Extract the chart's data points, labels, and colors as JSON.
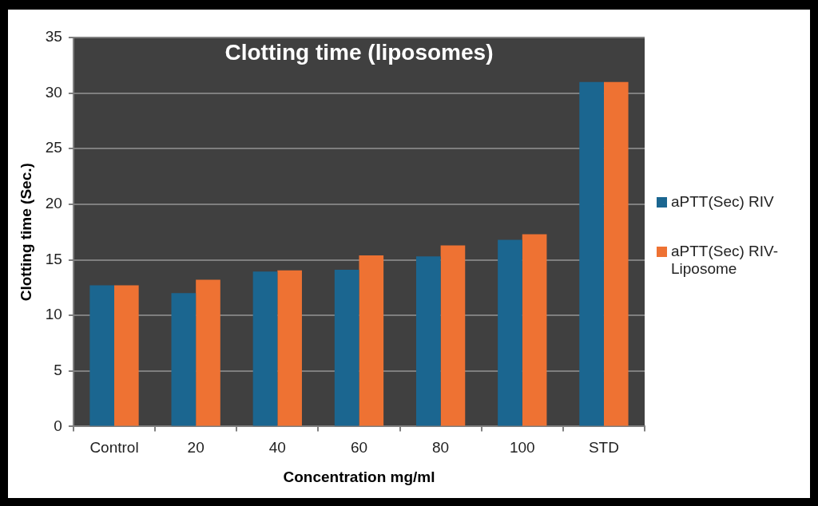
{
  "chart_data": {
    "type": "bar",
    "title": "Clotting time (liposomes)",
    "xlabel": "Concentration mg/ml",
    "ylabel": "Clotting time (Sec.)",
    "categories": [
      "Control",
      "20",
      "40",
      "60",
      "80",
      "100",
      "STD"
    ],
    "series": [
      {
        "name": "aPTT(Sec) RIV",
        "color": "#1b6690",
        "values": [
          12.7,
          12.0,
          13.95,
          14.1,
          15.3,
          16.8,
          31.0
        ]
      },
      {
        "name": "aPTT(Sec) RIV-Liposome",
        "color": "#ee7233",
        "values": [
          12.7,
          13.2,
          14.05,
          15.4,
          16.3,
          17.3,
          31.0
        ]
      }
    ],
    "ylim": [
      0,
      35
    ],
    "yticks": [
      0,
      5,
      10,
      15,
      20,
      25,
      30,
      35
    ],
    "grid": "y",
    "legend": "right"
  }
}
